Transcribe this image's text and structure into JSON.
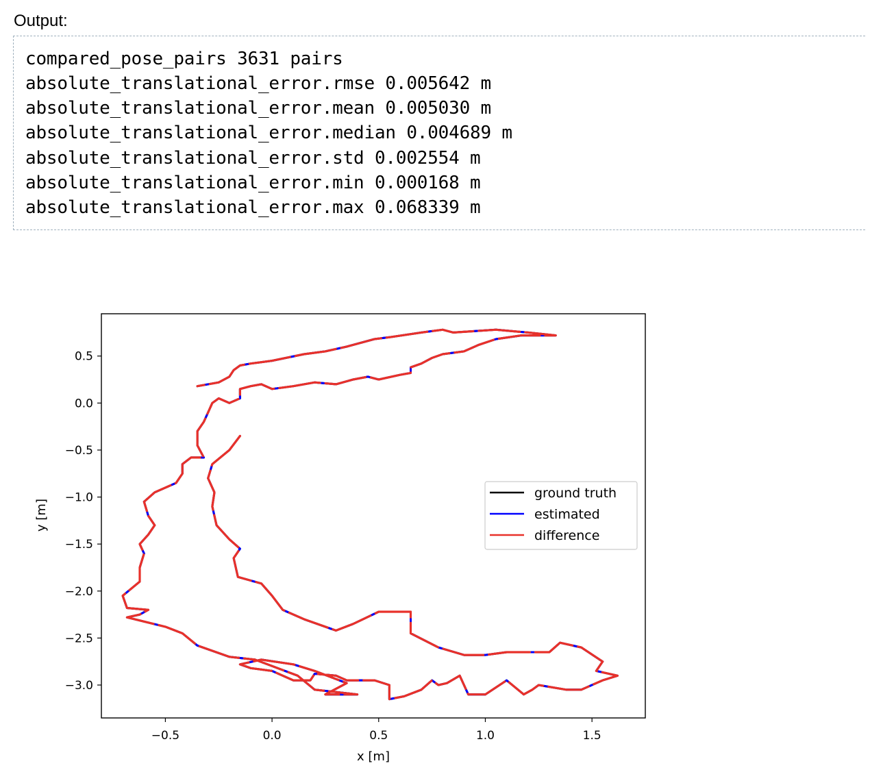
{
  "output": {
    "label": "Output:",
    "lines": [
      "compared_pose_pairs 3631 pairs",
      "absolute_translational_error.rmse 0.005642 m",
      "absolute_translational_error.mean 0.005030 m",
      "absolute_translational_error.median 0.004689 m",
      "absolute_translational_error.std 0.002554 m",
      "absolute_translational_error.min 0.000168 m",
      "absolute_translational_error.max 0.068339 m"
    ]
  },
  "chart_data": {
    "type": "line",
    "xlabel": "x [m]",
    "ylabel": "y [m]",
    "xlim": [
      -0.8,
      1.75
    ],
    "ylim": [
      -3.35,
      0.95
    ],
    "xticks": [
      -0.5,
      0.0,
      0.5,
      1.0,
      1.5
    ],
    "xtick_labels": [
      "−0.5",
      "0.0",
      "0.5",
      "1.0",
      "1.5"
    ],
    "yticks": [
      0.5,
      0.0,
      -0.5,
      -1.0,
      -1.5,
      -2.0,
      -2.5,
      -3.0
    ],
    "ytick_labels": [
      "0.5",
      "0.0",
      "−0.5",
      "−1.0",
      "−1.5",
      "−2.0",
      "−2.5",
      "−3.0"
    ],
    "grid": false,
    "legend_position": "center-right",
    "series": [
      {
        "name": "ground truth",
        "color": "#000000"
      },
      {
        "name": "estimated",
        "color": "#0000ff"
      },
      {
        "name": "difference",
        "color": "#e8312a"
      }
    ],
    "trajectory_xy": [
      [
        -0.15,
        -0.35
      ],
      [
        -0.2,
        -0.5
      ],
      [
        -0.28,
        -0.65
      ],
      [
        -0.3,
        -0.8
      ],
      [
        -0.27,
        -0.95
      ],
      [
        -0.28,
        -1.1
      ],
      [
        -0.26,
        -1.3
      ],
      [
        -0.2,
        -1.45
      ],
      [
        -0.15,
        -1.55
      ],
      [
        -0.18,
        -1.65
      ],
      [
        -0.16,
        -1.85
      ],
      [
        -0.05,
        -1.92
      ],
      [
        0.0,
        -2.05
      ],
      [
        0.05,
        -2.2
      ],
      [
        0.15,
        -2.3
      ],
      [
        0.3,
        -2.42
      ],
      [
        0.38,
        -2.35
      ],
      [
        0.5,
        -2.22
      ],
      [
        0.65,
        -2.22
      ],
      [
        0.65,
        -2.45
      ],
      [
        0.78,
        -2.6
      ],
      [
        0.9,
        -2.68
      ],
      [
        1.0,
        -2.68
      ],
      [
        1.1,
        -2.65
      ],
      [
        1.3,
        -2.65
      ],
      [
        1.35,
        -2.55
      ],
      [
        1.45,
        -2.6
      ],
      [
        1.55,
        -2.75
      ],
      [
        1.52,
        -2.85
      ],
      [
        1.62,
        -2.9
      ],
      [
        1.55,
        -2.95
      ],
      [
        1.45,
        -3.05
      ],
      [
        1.38,
        -3.05
      ],
      [
        1.25,
        -3.0
      ],
      [
        1.22,
        -3.05
      ],
      [
        1.18,
        -3.1
      ],
      [
        1.1,
        -2.95
      ],
      [
        1.0,
        -3.1
      ],
      [
        0.92,
        -3.1
      ],
      [
        0.88,
        -2.9
      ],
      [
        0.82,
        -2.98
      ],
      [
        0.78,
        -3.0
      ],
      [
        0.75,
        -2.95
      ],
      [
        0.7,
        -3.05
      ],
      [
        0.62,
        -3.12
      ],
      [
        0.55,
        -3.15
      ],
      [
        0.55,
        -3.0
      ],
      [
        0.48,
        -2.95
      ],
      [
        0.35,
        -2.95
      ],
      [
        0.3,
        -2.9
      ],
      [
        0.2,
        -2.88
      ],
      [
        0.18,
        -2.95
      ],
      [
        0.1,
        -2.95
      ],
      [
        0.0,
        -2.85
      ],
      [
        -0.1,
        -2.82
      ],
      [
        -0.15,
        -2.78
      ],
      [
        -0.05,
        -2.73
      ],
      [
        0.1,
        -2.78
      ],
      [
        0.2,
        -2.85
      ],
      [
        0.35,
        -2.98
      ],
      [
        0.25,
        -3.1
      ],
      [
        0.4,
        -3.1
      ],
      [
        0.2,
        -3.05
      ],
      [
        0.12,
        -2.9
      ],
      [
        -0.08,
        -2.73
      ],
      [
        -0.2,
        -2.7
      ],
      [
        -0.35,
        -2.58
      ],
      [
        -0.42,
        -2.45
      ],
      [
        -0.5,
        -2.38
      ],
      [
        -0.68,
        -2.28
      ],
      [
        -0.62,
        -2.25
      ],
      [
        -0.58,
        -2.2
      ],
      [
        -0.68,
        -2.18
      ],
      [
        -0.7,
        -2.05
      ],
      [
        -0.62,
        -1.9
      ],
      [
        -0.62,
        -1.75
      ],
      [
        -0.6,
        -1.6
      ],
      [
        -0.62,
        -1.5
      ],
      [
        -0.58,
        -1.4
      ],
      [
        -0.55,
        -1.3
      ],
      [
        -0.58,
        -1.2
      ],
      [
        -0.6,
        -1.05
      ],
      [
        -0.55,
        -0.95
      ],
      [
        -0.45,
        -0.85
      ],
      [
        -0.42,
        -0.75
      ],
      [
        -0.42,
        -0.65
      ],
      [
        -0.38,
        -0.58
      ],
      [
        -0.32,
        -0.58
      ],
      [
        -0.35,
        -0.45
      ],
      [
        -0.35,
        -0.3
      ],
      [
        -0.32,
        -0.2
      ],
      [
        -0.3,
        -0.1
      ],
      [
        -0.28,
        0.0
      ],
      [
        -0.25,
        0.05
      ],
      [
        -0.2,
        0.0
      ],
      [
        -0.15,
        0.05
      ],
      [
        -0.15,
        0.15
      ],
      [
        -0.1,
        0.18
      ],
      [
        -0.05,
        0.2
      ],
      [
        0.0,
        0.15
      ],
      [
        0.1,
        0.18
      ],
      [
        0.2,
        0.22
      ],
      [
        0.3,
        0.2
      ],
      [
        0.38,
        0.25
      ],
      [
        0.45,
        0.28
      ],
      [
        0.5,
        0.25
      ],
      [
        0.6,
        0.3
      ],
      [
        0.65,
        0.32
      ],
      [
        0.65,
        0.38
      ],
      [
        0.7,
        0.42
      ],
      [
        0.75,
        0.48
      ],
      [
        0.8,
        0.52
      ],
      [
        0.9,
        0.55
      ],
      [
        0.97,
        0.62
      ],
      [
        1.05,
        0.68
      ],
      [
        1.17,
        0.72
      ],
      [
        1.33,
        0.72
      ],
      [
        1.2,
        0.75
      ],
      [
        1.05,
        0.78
      ],
      [
        0.85,
        0.75
      ],
      [
        0.8,
        0.78
      ],
      [
        0.7,
        0.75
      ],
      [
        0.55,
        0.7
      ],
      [
        0.48,
        0.68
      ],
      [
        0.35,
        0.6
      ],
      [
        0.25,
        0.55
      ],
      [
        0.15,
        0.52
      ],
      [
        0.0,
        0.45
      ],
      [
        -0.1,
        0.42
      ],
      [
        -0.15,
        0.4
      ],
      [
        -0.18,
        0.35
      ],
      [
        -0.2,
        0.28
      ],
      [
        -0.25,
        0.22
      ],
      [
        -0.35,
        0.18
      ]
    ]
  }
}
